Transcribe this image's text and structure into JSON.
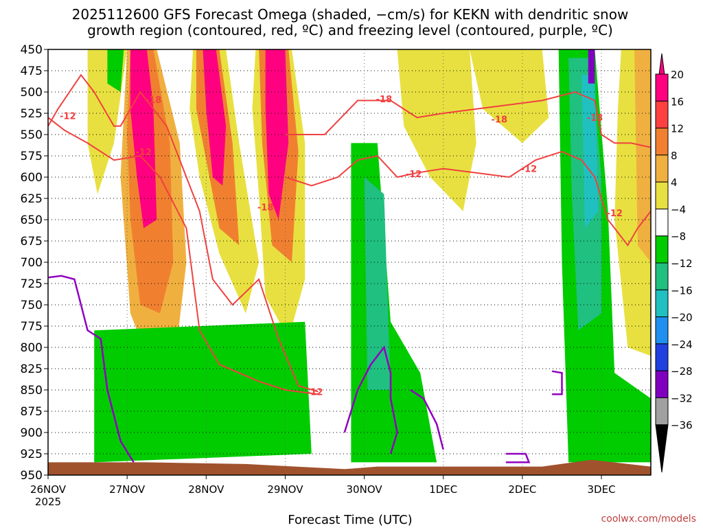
{
  "chart_data": {
    "type": "heatmap",
    "title_line1": "2025112600 GFS Forecast Omega (shaded, −cm/s) for KEKN with dendritic snow",
    "title_line2": "growth region (contoured, red, ºC) and freezing level (contoured, purple, ºC)",
    "xlabel": "Forecast Time (UTC)",
    "credit": "coolwx.com/models",
    "x_ticks": [
      {
        "label": "26NOV",
        "sub": "2025",
        "hour": 0
      },
      {
        "label": "27NOV",
        "sub": "",
        "hour": 24
      },
      {
        "label": "28NOV",
        "sub": "",
        "hour": 48
      },
      {
        "label": "29NOV",
        "sub": "",
        "hour": 72
      },
      {
        "label": "30NOV",
        "sub": "",
        "hour": 96
      },
      {
        "label": "1DEC",
        "sub": "",
        "hour": 120
      },
      {
        "label": "2DEC",
        "sub": "",
        "hour": 144
      },
      {
        "label": "3DEC",
        "sub": "",
        "hour": 168
      }
    ],
    "xlim": [
      0,
      183
    ],
    "y_ticks": [
      450,
      475,
      500,
      525,
      550,
      575,
      600,
      625,
      650,
      675,
      700,
      725,
      750,
      775,
      800,
      825,
      850,
      875,
      900,
      925,
      950
    ],
    "ylim": [
      450,
      950
    ],
    "colorbar": {
      "labels": [
        "20",
        "16",
        "12",
        "8",
        "4",
        "−4",
        "−8",
        "−12",
        "−16",
        "−20",
        "−24",
        "−28",
        "−32",
        "−36"
      ],
      "colors": [
        "#ff0080",
        "#ff4040",
        "#f08030",
        "#f0b040",
        "#e8e040",
        "#ffffff",
        "#00cc00",
        "#20c080",
        "#20c0c0",
        "#2090f0",
        "#2040e0",
        "#8000c0",
        "#a0a0a0",
        "#000000"
      ]
    },
    "contour_labels_red": [
      {
        "text": "-12",
        "hour": 6,
        "p": 528
      },
      {
        "text": "-18",
        "hour": 32,
        "p": 509
      },
      {
        "text": "-12",
        "hour": 29,
        "p": 570
      },
      {
        "text": "-18",
        "hour": 66,
        "p": 635
      },
      {
        "text": "-12",
        "hour": 81,
        "p": 852
      },
      {
        "text": "-18",
        "hour": 102,
        "p": 508
      },
      {
        "text": "-12",
        "hour": 111,
        "p": 596
      },
      {
        "text": "-18",
        "hour": 137,
        "p": 532
      },
      {
        "text": "-12",
        "hour": 146,
        "p": 590
      },
      {
        "text": "-18",
        "hour": 166,
        "p": 530
      },
      {
        "text": "-12",
        "hour": 172,
        "p": 642
      }
    ],
    "shading_areas": [
      {
        "color": "#f0b040",
        "pts": [
          [
            24,
            450
          ],
          [
            33,
            450
          ],
          [
            40,
            560
          ],
          [
            42,
            700
          ],
          [
            39,
            800
          ],
          [
            30,
            810
          ],
          [
            25,
            760
          ],
          [
            22,
            600
          ]
        ]
      },
      {
        "color": "#f08030",
        "pts": [
          [
            25,
            450
          ],
          [
            32,
            450
          ],
          [
            37,
            560
          ],
          [
            38,
            700
          ],
          [
            34,
            760
          ],
          [
            28,
            750
          ],
          [
            25,
            650
          ],
          [
            24,
            550
          ]
        ]
      },
      {
        "color": "#ff0080",
        "pts": [
          [
            25,
            450
          ],
          [
            30,
            450
          ],
          [
            32,
            520
          ],
          [
            33,
            650
          ],
          [
            29,
            660
          ],
          [
            27,
            600
          ],
          [
            25,
            520
          ]
        ]
      },
      {
        "color": "#e8e040",
        "pts": [
          [
            44,
            450
          ],
          [
            54,
            450
          ],
          [
            58,
            560
          ],
          [
            64,
            700
          ],
          [
            60,
            760
          ],
          [
            52,
            690
          ],
          [
            46,
            600
          ],
          [
            43,
            520
          ]
        ]
      },
      {
        "color": "#f08030",
        "pts": [
          [
            45,
            450
          ],
          [
            52,
            450
          ],
          [
            56,
            560
          ],
          [
            58,
            680
          ],
          [
            52,
            660
          ],
          [
            48,
            580
          ],
          [
            45,
            520
          ]
        ]
      },
      {
        "color": "#ff0080",
        "pts": [
          [
            47,
            450
          ],
          [
            51,
            450
          ],
          [
            54,
            540
          ],
          [
            53,
            610
          ],
          [
            50,
            600
          ],
          [
            48,
            520
          ]
        ]
      },
      {
        "color": "#e8e040",
        "pts": [
          [
            63,
            450
          ],
          [
            74,
            450
          ],
          [
            78,
            560
          ],
          [
            78,
            720
          ],
          [
            73,
            790
          ],
          [
            66,
            740
          ],
          [
            64,
            620
          ],
          [
            62,
            520
          ]
        ]
      },
      {
        "color": "#f08030",
        "pts": [
          [
            64,
            450
          ],
          [
            73,
            450
          ],
          [
            76,
            570
          ],
          [
            74,
            700
          ],
          [
            68,
            680
          ],
          [
            65,
            560
          ]
        ]
      },
      {
        "color": "#ff0080",
        "pts": [
          [
            66,
            450
          ],
          [
            72,
            450
          ],
          [
            73,
            560
          ],
          [
            70,
            650
          ],
          [
            67,
            620
          ],
          [
            66,
            520
          ]
        ]
      },
      {
        "color": "#e8e040",
        "pts": [
          [
            12,
            450
          ],
          [
            24,
            450
          ],
          [
            20,
            560
          ],
          [
            15,
            620
          ],
          [
            12,
            560
          ]
        ]
      },
      {
        "color": "#e8e040",
        "pts": [
          [
            106,
            450
          ],
          [
            128,
            450
          ],
          [
            130,
            560
          ],
          [
            126,
            640
          ],
          [
            116,
            600
          ],
          [
            108,
            540
          ]
        ]
      },
      {
        "color": "#e8e040",
        "pts": [
          [
            128,
            450
          ],
          [
            150,
            450
          ],
          [
            152,
            530
          ],
          [
            144,
            560
          ],
          [
            132,
            520
          ]
        ]
      },
      {
        "color": "#e8e040",
        "pts": [
          [
            174,
            450
          ],
          [
            183,
            450
          ],
          [
            183,
            810
          ],
          [
            176,
            800
          ],
          [
            172,
            650
          ],
          [
            173,
            520
          ]
        ]
      },
      {
        "color": "#f0b040",
        "pts": [
          [
            178,
            450
          ],
          [
            183,
            450
          ],
          [
            183,
            700
          ],
          [
            179,
            680
          ]
        ]
      },
      {
        "color": "#e8e040",
        "pts": [
          [
            96,
            858
          ],
          [
            106,
            858
          ],
          [
            108,
            925
          ],
          [
            96,
            925
          ]
        ]
      },
      {
        "color": "#00cc00",
        "pts": [
          [
            14,
            780
          ],
          [
            78,
            770
          ],
          [
            80,
            925
          ],
          [
            14,
            935
          ]
        ]
      },
      {
        "color": "#00cc00",
        "pts": [
          [
            92,
            560
          ],
          [
            100,
            560
          ],
          [
            104,
            770
          ],
          [
            113,
            830
          ],
          [
            118,
            935
          ],
          [
            92,
            935
          ]
        ]
      },
      {
        "color": "#20c080",
        "pts": [
          [
            96,
            600
          ],
          [
            102,
            620
          ],
          [
            104,
            850
          ],
          [
            97,
            850
          ]
        ]
      },
      {
        "color": "#00cc00",
        "pts": [
          [
            155,
            450
          ],
          [
            166,
            450
          ],
          [
            170,
            640
          ],
          [
            172,
            830
          ],
          [
            183,
            860
          ],
          [
            183,
            935
          ],
          [
            158,
            935
          ],
          [
            156,
            700
          ]
        ]
      },
      {
        "color": "#20c080",
        "pts": [
          [
            158,
            460
          ],
          [
            165,
            460
          ],
          [
            168,
            600
          ],
          [
            168,
            760
          ],
          [
            161,
            780
          ],
          [
            159,
            620
          ]
        ]
      },
      {
        "color": "#20c0c0",
        "pts": [
          [
            162,
            480
          ],
          [
            166,
            480
          ],
          [
            167,
            640
          ],
          [
            163,
            660
          ]
        ]
      },
      {
        "color": "#8000c0",
        "pts": [
          [
            164,
            450
          ],
          [
            166,
            450
          ],
          [
            166,
            490
          ],
          [
            164,
            490
          ]
        ]
      },
      {
        "color": "#00cc00",
        "pts": [
          [
            18,
            450
          ],
          [
            23,
            450
          ],
          [
            22,
            500
          ],
          [
            18,
            490
          ]
        ]
      }
    ],
    "red_contours": [
      [
        [
          0,
          540
        ],
        [
          3,
          520
        ],
        [
          10,
          480
        ],
        [
          14,
          500
        ],
        [
          20,
          540
        ],
        [
          22,
          540
        ],
        [
          28,
          500
        ],
        [
          36,
          540
        ],
        [
          42,
          600
        ],
        [
          46,
          640
        ],
        [
          50,
          720
        ],
        [
          56,
          750
        ],
        [
          64,
          720
        ],
        [
          70,
          790
        ],
        [
          76,
          845
        ],
        [
          82,
          852
        ]
      ],
      [
        [
          0,
          530
        ],
        [
          5,
          545
        ],
        [
          12,
          560
        ],
        [
          20,
          580
        ],
        [
          28,
          575
        ],
        [
          34,
          600
        ],
        [
          42,
          660
        ],
        [
          46,
          780
        ],
        [
          52,
          820
        ],
        [
          64,
          840
        ],
        [
          72,
          850
        ],
        [
          82,
          855
        ]
      ],
      [
        [
          72,
          550
        ],
        [
          84,
          550
        ],
        [
          94,
          510
        ],
        [
          104,
          510
        ],
        [
          112,
          530
        ],
        [
          120,
          525
        ],
        [
          130,
          520
        ],
        [
          150,
          510
        ],
        [
          160,
          500
        ],
        [
          166,
          510
        ],
        [
          168,
          550
        ],
        [
          172,
          560
        ],
        [
          177,
          560
        ],
        [
          183,
          565
        ]
      ],
      [
        [
          72,
          600
        ],
        [
          80,
          610
        ],
        [
          88,
          600
        ],
        [
          94,
          580
        ],
        [
          100,
          575
        ],
        [
          106,
          600
        ],
        [
          112,
          595
        ],
        [
          120,
          590
        ],
        [
          130,
          595
        ],
        [
          140,
          600
        ],
        [
          148,
          580
        ],
        [
          156,
          570
        ],
        [
          162,
          580
        ],
        [
          166,
          600
        ],
        [
          170,
          650
        ],
        [
          176,
          680
        ],
        [
          179,
          660
        ],
        [
          183,
          640
        ]
      ]
    ],
    "purple_contours": [
      [
        [
          0,
          718
        ],
        [
          4,
          716
        ],
        [
          8,
          720
        ],
        [
          12,
          780
        ],
        [
          16,
          790
        ],
        [
          18,
          850
        ],
        [
          22,
          910
        ],
        [
          26,
          935
        ]
      ],
      [
        [
          90,
          900
        ],
        [
          94,
          850
        ],
        [
          98,
          820
        ],
        [
          102,
          800
        ],
        [
          104,
          830
        ],
        [
          104,
          860
        ],
        [
          106,
          900
        ],
        [
          104,
          925
        ]
      ],
      [
        [
          110,
          850
        ],
        [
          114,
          860
        ],
        [
          118,
          890
        ],
        [
          120,
          920
        ]
      ],
      [
        [
          139,
          925
        ],
        [
          145,
          925
        ],
        [
          146,
          935
        ],
        [
          139,
          935
        ]
      ],
      [
        [
          153,
          828
        ],
        [
          156,
          830
        ],
        [
          156,
          855
        ],
        [
          153,
          855
        ]
      ]
    ],
    "terrain": {
      "color": "#a0522d",
      "pts": [
        [
          0,
          935
        ],
        [
          30,
          935
        ],
        [
          60,
          937
        ],
        [
          90,
          943
        ],
        [
          100,
          940
        ],
        [
          120,
          940
        ],
        [
          150,
          940
        ],
        [
          165,
          932
        ],
        [
          183,
          940
        ],
        [
          183,
          950
        ],
        [
          0,
          950
        ]
      ]
    }
  }
}
